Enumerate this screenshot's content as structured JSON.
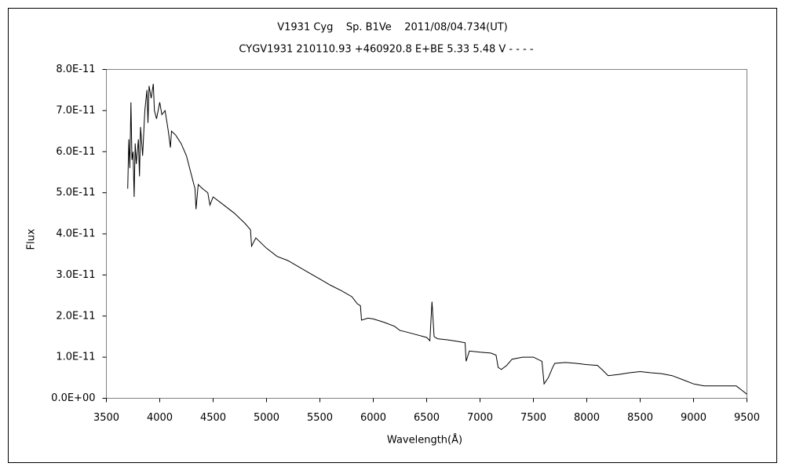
{
  "chart_data": {
    "type": "line",
    "title": "V1931 Cyg    Sp. B1Ve    2011/08/04.734(UT)",
    "subtitle": "CYGV1931 210110.93 +460920.8 E+BE 5.33 5.48 V - - - -",
    "x_label": "Wavelength(Å)",
    "y_label": "Flux",
    "color": "#000000",
    "xlim": [
      3500,
      9500
    ],
    "xticks": [
      3500,
      4000,
      4500,
      5000,
      5500,
      6000,
      6500,
      7000,
      7500,
      8000,
      8500,
      9000,
      9500
    ],
    "ylim": [
      0,
      8e-11
    ],
    "yticks": [
      {
        "value": 0,
        "label": "0.0E+00"
      },
      {
        "value": 1e-11,
        "label": "1.0E-11"
      },
      {
        "value": 2e-11,
        "label": "2.0E-11"
      },
      {
        "value": 3e-11,
        "label": "3.0E-11"
      },
      {
        "value": 4e-11,
        "label": "4.0E-11"
      },
      {
        "value": 5e-11,
        "label": "5.0E-11"
      },
      {
        "value": 6e-11,
        "label": "6.0E-11"
      },
      {
        "value": 7e-11,
        "label": "7.0E-11"
      },
      {
        "value": 8e-11,
        "label": "8.0E-11"
      }
    ],
    "x": [
      3700,
      3710,
      3720,
      3730,
      3740,
      3750,
      3760,
      3770,
      3780,
      3800,
      3810,
      3820,
      3840,
      3860,
      3880,
      3890,
      3900,
      3920,
      3940,
      3950,
      3970,
      4000,
      4020,
      4050,
      4080,
      4100,
      4110,
      4150,
      4200,
      4250,
      4300,
      4330,
      4340,
      4360,
      4400,
      4450,
      4470,
      4500,
      4600,
      4700,
      4800,
      4850,
      4860,
      4900,
      5000,
      5100,
      5200,
      5300,
      5400,
      5500,
      5600,
      5700,
      5800,
      5850,
      5880,
      5890,
      5950,
      6000,
      6100,
      6200,
      6250,
      6300,
      6400,
      6500,
      6530,
      6550,
      6570,
      6600,
      6700,
      6800,
      6860,
      6870,
      6900,
      7000,
      7100,
      7150,
      7170,
      7200,
      7250,
      7300,
      7400,
      7500,
      7580,
      7600,
      7640,
      7680,
      7700,
      7800,
      7900,
      8000,
      8100,
      8150,
      8200,
      8300,
      8400,
      8500,
      8600,
      8700,
      8800,
      8900,
      9000,
      9100,
      9200,
      9300,
      9400,
      9450,
      9500
    ],
    "values": [
      5.1e-11,
      6.3e-11,
      5.6e-11,
      7.2e-11,
      5.8e-11,
      6e-11,
      4.9e-11,
      6.2e-11,
      5.7e-11,
      6.3e-11,
      5.4e-11,
      6.6e-11,
      5.9e-11,
      7e-11,
      7.5e-11,
      6.7e-11,
      7.6e-11,
      7.3e-11,
      7.65e-11,
      7e-11,
      6.8e-11,
      7.2e-11,
      6.9e-11,
      7e-11,
      6.5e-11,
      6.1e-11,
      6.5e-11,
      6.4e-11,
      6.2e-11,
      5.9e-11,
      5.4e-11,
      5.1e-11,
      4.6e-11,
      5.2e-11,
      5.1e-11,
      5e-11,
      4.7e-11,
      4.9e-11,
      4.7e-11,
      4.5e-11,
      4.25e-11,
      4.1e-11,
      3.7e-11,
      3.9e-11,
      3.65e-11,
      3.45e-11,
      3.35e-11,
      3.2e-11,
      3.05e-11,
      2.9e-11,
      2.75e-11,
      2.62e-11,
      2.47e-11,
      2.3e-11,
      2.25e-11,
      1.9e-11,
      1.95e-11,
      1.93e-11,
      1.85e-11,
      1.75e-11,
      1.65e-11,
      1.62e-11,
      1.55e-11,
      1.48e-11,
      1.4e-11,
      2.35e-11,
      1.5e-11,
      1.45e-11,
      1.42e-11,
      1.38e-11,
      1.35e-11,
      9e-12,
      1.15e-11,
      1.12e-11,
      1.1e-11,
      1.05e-11,
      7.5e-12,
      7e-12,
      8e-12,
      9.5e-12,
      1e-11,
      1e-11,
      9e-12,
      3.5e-12,
      5e-12,
      7.5e-12,
      8.5e-12,
      8.7e-12,
      8.5e-12,
      8.2e-12,
      8e-12,
      6.8e-12,
      5.5e-12,
      5.8e-12,
      6.2e-12,
      6.5e-12,
      6.2e-12,
      6e-12,
      5.5e-12,
      4.5e-12,
      3.5e-12,
      3e-12,
      3e-12,
      3e-12,
      3e-12,
      2e-12,
      1e-12
    ]
  }
}
